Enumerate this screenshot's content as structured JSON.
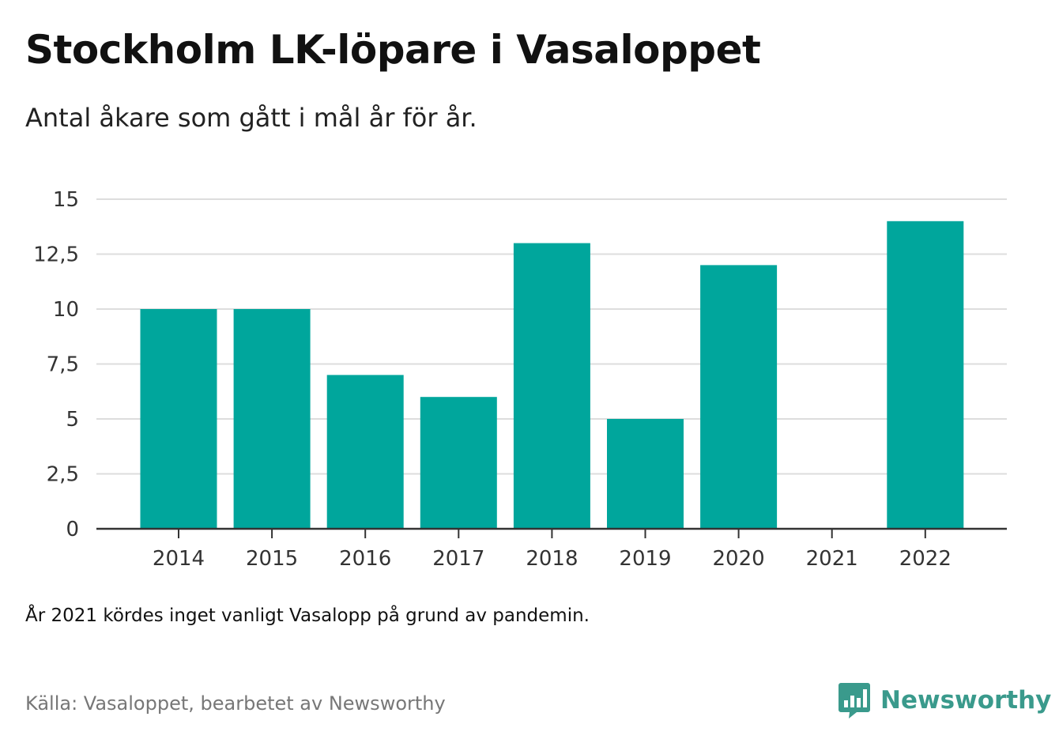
{
  "header": {
    "title": "Stockholm LK-löpare i Vasaloppet",
    "subtitle": "Antal åkare som gått i mål år för år."
  },
  "footer": {
    "note": "År 2021 kördes inget vanligt Vasalopp på grund av pandemin.",
    "source": "Källa: Vasaloppet, bearbetet av Newsworthy",
    "brand": "Newsworthy",
    "brand_icon": "newsworthy-bar-chart-logo-icon"
  },
  "colors": {
    "bar": "#00a69c",
    "grid": "#dddddd",
    "axis": "#333333",
    "brand": "#3a9a8c"
  },
  "chart_data": {
    "type": "bar",
    "categories": [
      "2014",
      "2015",
      "2016",
      "2017",
      "2018",
      "2019",
      "2020",
      "2021",
      "2022"
    ],
    "values": [
      10,
      10,
      7,
      6,
      13,
      5,
      12,
      0,
      14
    ],
    "ylim": [
      0,
      15
    ],
    "yticks": [
      0,
      2.5,
      5,
      7.5,
      10,
      12.5,
      15
    ],
    "ytick_labels": [
      "0",
      "2,5",
      "5",
      "7,5",
      "10",
      "12,5",
      "15"
    ],
    "grid": true,
    "legend": false
  }
}
